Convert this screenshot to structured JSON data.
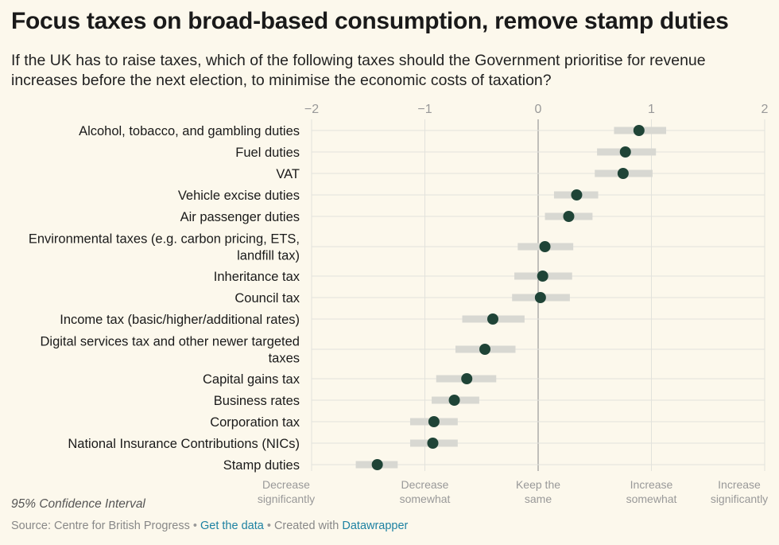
{
  "header": {
    "title": "Focus taxes on broad-based consumption, remove stamp duties",
    "subtitle": "If the UK has to raise taxes, which of the following taxes should the Government prioritise for revenue increases before the next election, to minimise the economic costs of taxation?"
  },
  "footer": {
    "legend_note": "95% Confidence Interval",
    "source_label": "Source: Centre for British Progress",
    "separator": "•",
    "get_data_link": "Get the data",
    "created_with": "Created with",
    "datawrapper_link": "Datawrapper"
  },
  "colors": {
    "background": "#fcf8ec",
    "dot": "#1f4437",
    "ci_bar": "#d8d8d2",
    "gridline": "#e2e2dc",
    "zero_line": "#999999",
    "tick_text": "#999999"
  },
  "chart_data": {
    "type": "dot",
    "title": "Focus taxes on broad-based consumption, remove stamp duties",
    "xlim": [
      -2,
      2
    ],
    "xticks": [
      -2,
      -1,
      0,
      1,
      2
    ],
    "xtick_labels": [
      "−2",
      "−1",
      "0",
      "1",
      "2"
    ],
    "scale_labels": [
      {
        "value": -2,
        "lines": [
          "Decrease",
          "significantly"
        ]
      },
      {
        "value": -1,
        "lines": [
          "Decrease",
          "somewhat"
        ]
      },
      {
        "value": 0,
        "lines": [
          "Keep the",
          "same"
        ]
      },
      {
        "value": 1,
        "lines": [
          "Increase",
          "somewhat"
        ]
      },
      {
        "value": 2,
        "lines": [
          "Increase",
          "significantly"
        ]
      }
    ],
    "series": [
      {
        "category": [
          "Alcohol, tobacco, and gambling duties"
        ],
        "value": 0.89,
        "ci": [
          0.67,
          1.13
        ]
      },
      {
        "category": [
          "Fuel duties"
        ],
        "value": 0.77,
        "ci": [
          0.52,
          1.04
        ]
      },
      {
        "category": [
          "VAT"
        ],
        "value": 0.75,
        "ci": [
          0.5,
          1.01
        ]
      },
      {
        "category": [
          "Vehicle excise duties"
        ],
        "value": 0.34,
        "ci": [
          0.14,
          0.53
        ]
      },
      {
        "category": [
          "Air passenger duties"
        ],
        "value": 0.27,
        "ci": [
          0.06,
          0.48
        ]
      },
      {
        "category": [
          "Environmental taxes (e.g. carbon pricing, ETS,",
          "landfill tax)"
        ],
        "value": 0.06,
        "ci": [
          -0.18,
          0.31
        ]
      },
      {
        "category": [
          "Inheritance tax"
        ],
        "value": 0.04,
        "ci": [
          -0.21,
          0.3
        ]
      },
      {
        "category": [
          "Council tax"
        ],
        "value": 0.02,
        "ci": [
          -0.23,
          0.28
        ]
      },
      {
        "category": [
          "Income tax (basic/higher/additional rates)"
        ],
        "value": -0.4,
        "ci": [
          -0.67,
          -0.12
        ]
      },
      {
        "category": [
          "Digital services tax and other newer targeted",
          "taxes"
        ],
        "value": -0.47,
        "ci": [
          -0.73,
          -0.2
        ]
      },
      {
        "category": [
          "Capital gains tax"
        ],
        "value": -0.63,
        "ci": [
          -0.9,
          -0.37
        ]
      },
      {
        "category": [
          "Business rates"
        ],
        "value": -0.74,
        "ci": [
          -0.94,
          -0.52
        ]
      },
      {
        "category": [
          "Corporation tax"
        ],
        "value": -0.92,
        "ci": [
          -1.13,
          -0.71
        ]
      },
      {
        "category": [
          "National Insurance Contributions (NICs)"
        ],
        "value": -0.93,
        "ci": [
          -1.13,
          -0.71
        ]
      },
      {
        "category": [
          "Stamp duties"
        ],
        "value": -1.42,
        "ci": [
          -1.61,
          -1.24
        ]
      }
    ]
  }
}
